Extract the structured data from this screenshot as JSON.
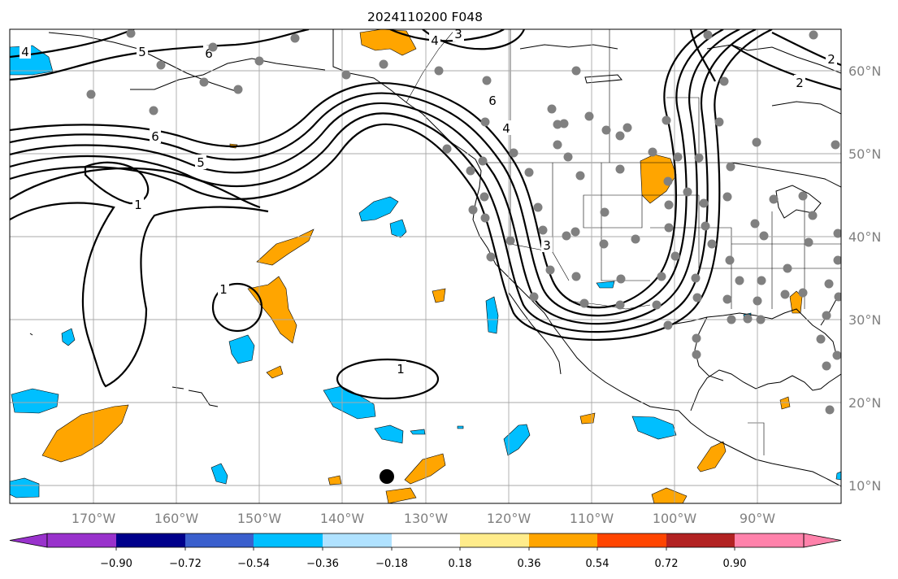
{
  "title": "2024110200 F048",
  "lon_labels": [
    "170°W",
    "160°W",
    "150°W",
    "140°W",
    "130°W",
    "120°W",
    "110°W",
    "100°W",
    "90°W"
  ],
  "lat_labels": [
    "60°N",
    "50°N",
    "40°N",
    "30°N",
    "20°N",
    "10°N"
  ],
  "contour_labels": [
    "4",
    "5",
    "6",
    "4",
    "3",
    "2",
    "2",
    "6",
    "5",
    "1",
    "6",
    "4",
    "3",
    "1",
    "1"
  ],
  "colorbar": {
    "ticks": [
      "−0.90",
      "−0.72",
      "−0.54",
      "−0.36",
      "−0.18",
      "0.18",
      "0.36",
      "0.54",
      "0.72",
      "0.90"
    ],
    "colors": [
      "#9932cc",
      "#00008b",
      "#3a5fcd",
      "#00bfff",
      "#b0e2ff",
      "#ffffff",
      "#ffec8b",
      "#ffa500",
      "#ff4500",
      "#b22222",
      "#ff82ab"
    ]
  },
  "colors": {
    "positive_fill": "#ffa500",
    "negative_fill": "#00bfff",
    "station_dot": "#808080",
    "grid": "#a9a9a9",
    "marker": "#000000"
  }
}
